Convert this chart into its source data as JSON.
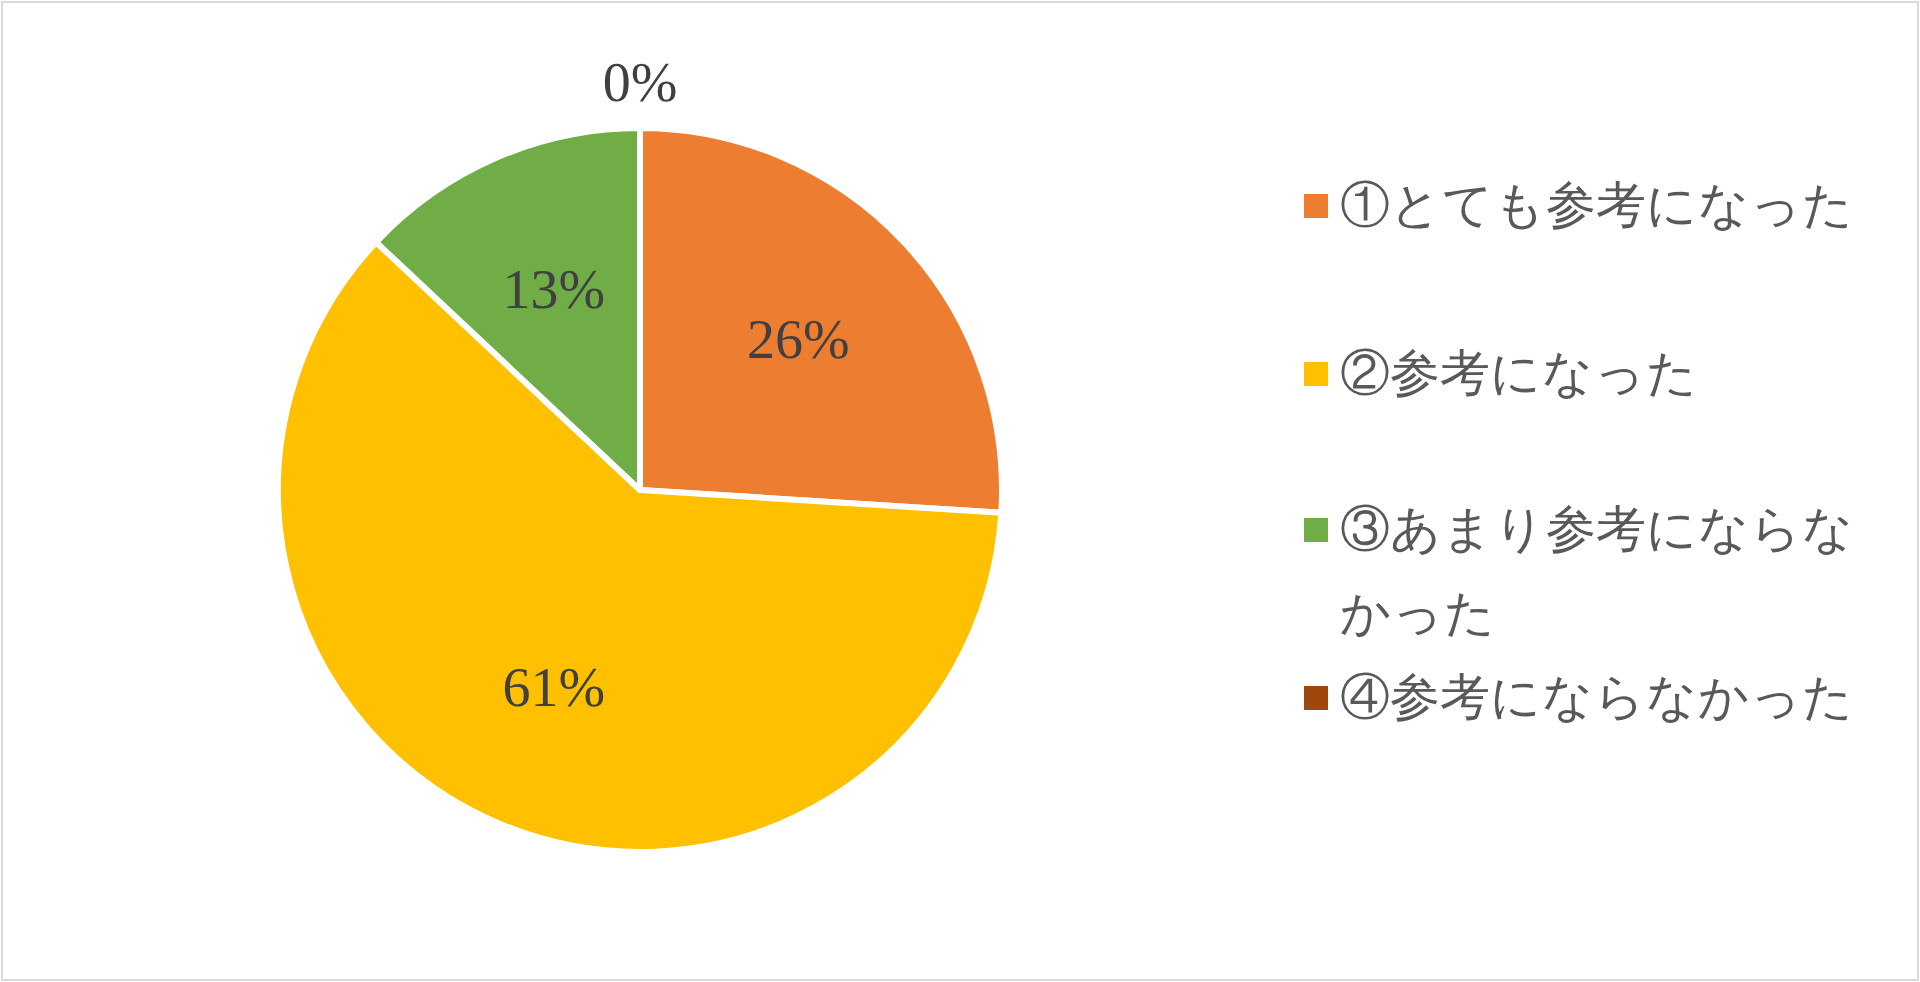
{
  "chart_data": {
    "type": "pie",
    "categories": [
      "①とても参考になった",
      "②参考になった",
      "③あまり参考にならなかった",
      "④参考にならなかった"
    ],
    "values": [
      26,
      61,
      13,
      0
    ],
    "colors": [
      "#ed7d31",
      "#ffc000",
      "#70ad47",
      "#9e480e"
    ],
    "value_labels": [
      "26%",
      "61%",
      "13%",
      "0%"
    ],
    "legend": "right"
  }
}
